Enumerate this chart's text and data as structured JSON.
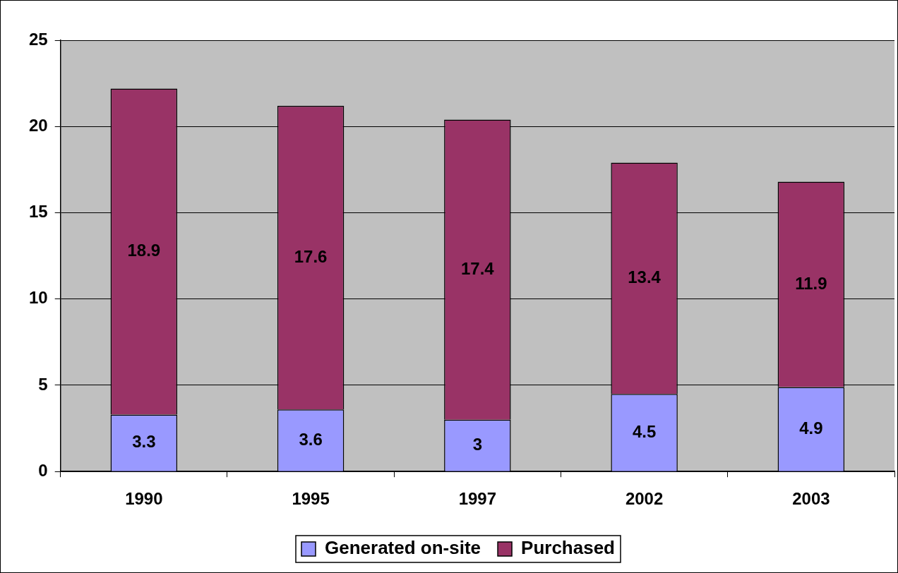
{
  "chart_data": {
    "type": "bar",
    "stacked": true,
    "categories": [
      "1990",
      "1995",
      "1997",
      "2002",
      "2003"
    ],
    "series": [
      {
        "name": "Generated on-site",
        "color": "#9999ff",
        "values": [
          3.3,
          3.6,
          3,
          4.5,
          4.9
        ]
      },
      {
        "name": "Purchased",
        "color": "#993366",
        "values": [
          18.9,
          17.6,
          17.4,
          13.4,
          11.9
        ]
      }
    ],
    "ylim": [
      0,
      25
    ],
    "yticks": [
      0,
      5,
      10,
      15,
      20,
      25
    ],
    "grid": "y",
    "legend": "bottom",
    "data_labels": true
  }
}
